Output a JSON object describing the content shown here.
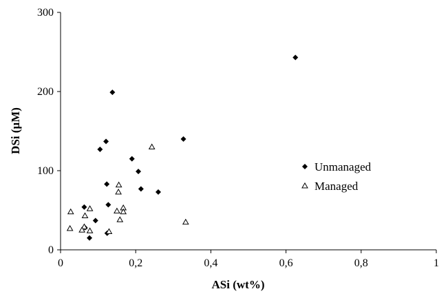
{
  "chart_data": {
    "type": "scatter",
    "xlabel": "ASi (wt%)",
    "ylabel": "DSi (µM)",
    "xlim": [
      0,
      1
    ],
    "ylim": [
      0,
      300
    ],
    "x_ticks": [
      0,
      0.2,
      0.4,
      0.6,
      0.8,
      1
    ],
    "x_tick_labels": [
      "0",
      "0,2",
      "0,4",
      "0,6",
      "0,8",
      "1"
    ],
    "y_ticks": [
      0,
      100,
      200,
      300
    ],
    "y_tick_labels": [
      "0",
      "100",
      "200",
      "300"
    ],
    "grid": false,
    "legend_position": "right",
    "series": [
      {
        "name": "Unmanaged",
        "marker": "diamond",
        "color": "#000000",
        "points": [
          [
            0.625,
            243
          ],
          [
            0.138,
            199
          ],
          [
            0.327,
            140
          ],
          [
            0.121,
            137
          ],
          [
            0.105,
            127
          ],
          [
            0.19,
            115
          ],
          [
            0.207,
            99
          ],
          [
            0.123,
            83
          ],
          [
            0.214,
            77
          ],
          [
            0.26,
            73
          ],
          [
            0.127,
            57
          ],
          [
            0.063,
            54
          ],
          [
            0.093,
            37
          ],
          [
            0.065,
            28
          ],
          [
            0.124,
            21
          ],
          [
            0.077,
            15
          ]
        ]
      },
      {
        "name": "Managed",
        "marker": "triangle",
        "color": "#000000",
        "points": [
          [
            0.243,
            130
          ],
          [
            0.155,
            82
          ],
          [
            0.154,
            73
          ],
          [
            0.167,
            53
          ],
          [
            0.167,
            48
          ],
          [
            0.078,
            52
          ],
          [
            0.15,
            49
          ],
          [
            0.027,
            48
          ],
          [
            0.065,
            43
          ],
          [
            0.158,
            38
          ],
          [
            0.333,
            35
          ],
          [
            0.063,
            29
          ],
          [
            0.025,
            27
          ],
          [
            0.057,
            25
          ],
          [
            0.078,
            24
          ],
          [
            0.129,
            23
          ]
        ]
      }
    ]
  }
}
